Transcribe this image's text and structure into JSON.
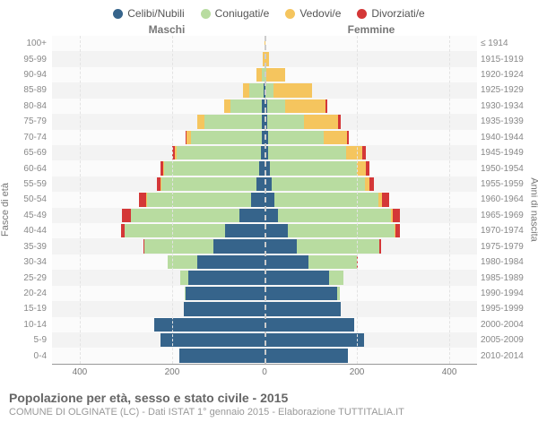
{
  "legend": [
    {
      "label": "Celibi/Nubili",
      "color": "#36648b"
    },
    {
      "label": "Coniugati/e",
      "color": "#b8dca0"
    },
    {
      "label": "Vedovi/e",
      "color": "#f5c55e"
    },
    {
      "label": "Divorziati/e",
      "color": "#d43737"
    }
  ],
  "gender": {
    "male": "Maschi",
    "female": "Femmine"
  },
  "axis": {
    "left_title": "Fasce di età",
    "right_title": "Anni di nascita",
    "x_ticks": [
      -400,
      -200,
      0,
      200,
      400
    ],
    "x_max": 460
  },
  "colors": {
    "celibi": "#36648b",
    "coniugati": "#b8dca0",
    "vedovi": "#f5c55e",
    "divorziati": "#d43737",
    "grid": "#e3e3e3",
    "center": "#cccccc"
  },
  "rows": [
    {
      "age": "100+",
      "year": "≤ 1914",
      "male": [
        0,
        0,
        0,
        0
      ],
      "female": [
        0,
        0,
        2,
        0
      ]
    },
    {
      "age": "95-99",
      "year": "1915-1919",
      "male": [
        0,
        0,
        3,
        0
      ],
      "female": [
        0,
        0,
        10,
        0
      ]
    },
    {
      "age": "90-94",
      "year": "1920-1924",
      "male": [
        0,
        5,
        12,
        0
      ],
      "female": [
        0,
        3,
        42,
        0
      ]
    },
    {
      "age": "85-89",
      "year": "1925-1929",
      "male": [
        2,
        32,
        12,
        0
      ],
      "female": [
        2,
        18,
        82,
        0
      ]
    },
    {
      "age": "80-84",
      "year": "1930-1934",
      "male": [
        5,
        68,
        15,
        0
      ],
      "female": [
        5,
        40,
        88,
        3
      ]
    },
    {
      "age": "75-79",
      "year": "1935-1939",
      "male": [
        5,
        125,
        15,
        0
      ],
      "female": [
        5,
        80,
        75,
        5
      ]
    },
    {
      "age": "70-74",
      "year": "1940-1944",
      "male": [
        5,
        155,
        8,
        3
      ],
      "female": [
        8,
        120,
        50,
        5
      ]
    },
    {
      "age": "65-69",
      "year": "1945-1949",
      "male": [
        8,
        182,
        5,
        5
      ],
      "female": [
        8,
        168,
        35,
        8
      ]
    },
    {
      "age": "60-64",
      "year": "1950-1954",
      "male": [
        12,
        205,
        3,
        5
      ],
      "female": [
        12,
        188,
        20,
        8
      ]
    },
    {
      "age": "55-59",
      "year": "1955-1959",
      "male": [
        18,
        205,
        2,
        8
      ],
      "female": [
        15,
        203,
        10,
        8
      ]
    },
    {
      "age": "50-54",
      "year": "1960-1964",
      "male": [
        30,
        225,
        2,
        15
      ],
      "female": [
        22,
        225,
        8,
        15
      ]
    },
    {
      "age": "45-49",
      "year": "1965-1969",
      "male": [
        55,
        235,
        0,
        18
      ],
      "female": [
        30,
        243,
        5,
        15
      ]
    },
    {
      "age": "40-44",
      "year": "1970-1974",
      "male": [
        85,
        218,
        0,
        8
      ],
      "female": [
        50,
        232,
        2,
        10
      ]
    },
    {
      "age": "35-39",
      "year": "1975-1979",
      "male": [
        110,
        150,
        0,
        3
      ],
      "female": [
        70,
        178,
        0,
        5
      ]
    },
    {
      "age": "30-34",
      "year": "1980-1984",
      "male": [
        145,
        65,
        0,
        0
      ],
      "female": [
        95,
        105,
        0,
        2
      ]
    },
    {
      "age": "25-29",
      "year": "1985-1989",
      "male": [
        165,
        18,
        0,
        0
      ],
      "female": [
        140,
        30,
        0,
        0
      ]
    },
    {
      "age": "20-24",
      "year": "1990-1994",
      "male": [
        170,
        2,
        0,
        0
      ],
      "female": [
        158,
        5,
        0,
        0
      ]
    },
    {
      "age": "15-19",
      "year": "1995-1999",
      "male": [
        175,
        0,
        0,
        0
      ],
      "female": [
        165,
        0,
        0,
        0
      ]
    },
    {
      "age": "10-14",
      "year": "2000-2004",
      "male": [
        238,
        0,
        0,
        0
      ],
      "female": [
        195,
        0,
        0,
        0
      ]
    },
    {
      "age": "5-9",
      "year": "2005-2009",
      "male": [
        225,
        0,
        0,
        0
      ],
      "female": [
        215,
        0,
        0,
        0
      ]
    },
    {
      "age": "0-4",
      "year": "2010-2014",
      "male": [
        185,
        0,
        0,
        0
      ],
      "female": [
        180,
        0,
        0,
        0
      ]
    }
  ],
  "footer": {
    "title": "Popolazione per età, sesso e stato civile - 2015",
    "sub": "COMUNE DI OLGINATE (LC) - Dati ISTAT 1° gennaio 2015 - Elaborazione TUTTITALIA.IT"
  }
}
